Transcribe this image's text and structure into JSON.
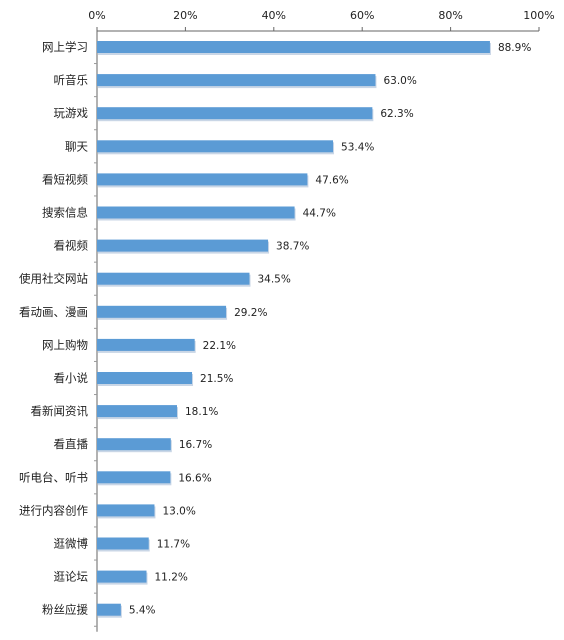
{
  "chart_data": {
    "type": "bar",
    "orientation": "horizontal",
    "categories": [
      "网上学习",
      "听音乐",
      "玩游戏",
      "聊天",
      "看短视频",
      "搜索信息",
      "看视频",
      "使用社交网站",
      "看动画、漫画",
      "网上购物",
      "看小说",
      "看新闻资讯",
      "看直播",
      "听电台、听书",
      "进行内容创作",
      "逛微博",
      "逛论坛",
      "粉丝应援"
    ],
    "values": [
      88.9,
      63.0,
      62.3,
      53.4,
      47.6,
      44.7,
      38.7,
      34.5,
      29.2,
      22.1,
      21.5,
      18.1,
      16.7,
      16.6,
      13.0,
      11.7,
      11.2,
      5.4
    ],
    "value_labels": [
      "88.9%",
      "63.0%",
      "62.3%",
      "53.4%",
      "47.6%",
      "44.7%",
      "38.7%",
      "34.5%",
      "29.2%",
      "22.1%",
      "21.5%",
      "18.1%",
      "16.7%",
      "16.6%",
      "13.0%",
      "11.7%",
      "11.2%",
      "5.4%"
    ],
    "x_ticks": [
      0,
      20,
      40,
      60,
      80,
      100
    ],
    "x_tick_labels": [
      "0%",
      "20%",
      "40%",
      "60%",
      "80%",
      "100%"
    ],
    "xlim": [
      0,
      100
    ],
    "axis_position": "top",
    "grid": false,
    "bar_color": "#5b9bd5"
  }
}
